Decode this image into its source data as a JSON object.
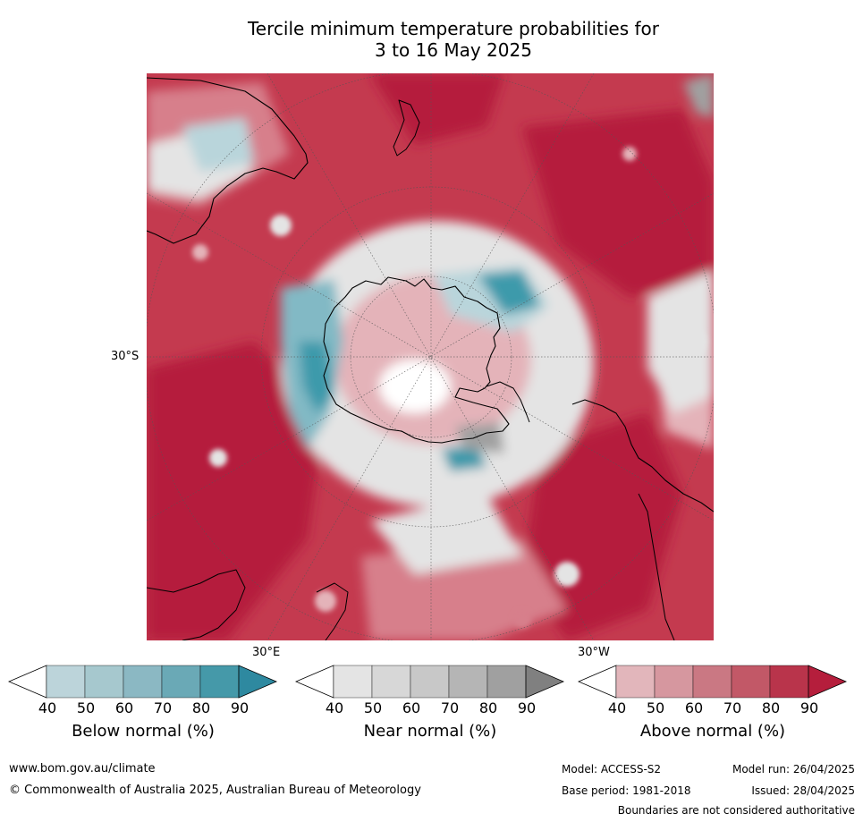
{
  "title": {
    "line1": "Tercile minimum temperature probabilities for",
    "line2": "3 to 16 May 2025"
  },
  "map": {
    "labels": {
      "lat_30s": "30°S",
      "lon_30e": "30°E",
      "lon_30w": "30°W"
    },
    "colors": {
      "ocean_default": "#c43a4f",
      "deep_above": "#b51e3c",
      "mid_above": "#d77f8b",
      "light_above": "#e4b3b9",
      "near_light": "#e4e4e4",
      "near_mid": "#c9c9c9",
      "near_dark": "#a0a0a0",
      "below_light": "#b9d5db",
      "below_mid": "#82b9c5",
      "below_dark": "#3c9aab",
      "coastline": "#000000"
    }
  },
  "legends": [
    {
      "title": "Below normal (%)",
      "ticks": [
        "40",
        "50",
        "60",
        "70",
        "80",
        "90"
      ],
      "colors": [
        "#ffffff",
        "#bcd4da",
        "#a6c8ce",
        "#8bb8c3",
        "#6aa9b6",
        "#4599a9",
        "#2e89a0"
      ]
    },
    {
      "title": "Near normal (%)",
      "ticks": [
        "40",
        "50",
        "60",
        "70",
        "80",
        "90"
      ],
      "colors": [
        "#ffffff",
        "#e4e4e4",
        "#d7d7d7",
        "#c8c8c8",
        "#b5b5b5",
        "#a0a0a0",
        "#808080"
      ]
    },
    {
      "title": "Above normal (%)",
      "ticks": [
        "40",
        "50",
        "60",
        "70",
        "80",
        "90"
      ],
      "colors": [
        "#ffffff",
        "#e2b6bb",
        "#d6979f",
        "#ca7883",
        "#c25867",
        "#b9344b",
        "#b51e3c"
      ]
    }
  ],
  "footer": {
    "website": "www.bom.gov.au/climate",
    "copyright": "© Commonwealth of Australia 2025, Australian Bureau of Meteorology",
    "model": "Model: ACCESS-S2",
    "base_period": "Base period: 1981-2018",
    "model_run": "Model run: 26/04/2025",
    "issued": "Issued: 28/04/2025",
    "disclaimer": "Boundaries are not considered authoritative"
  }
}
